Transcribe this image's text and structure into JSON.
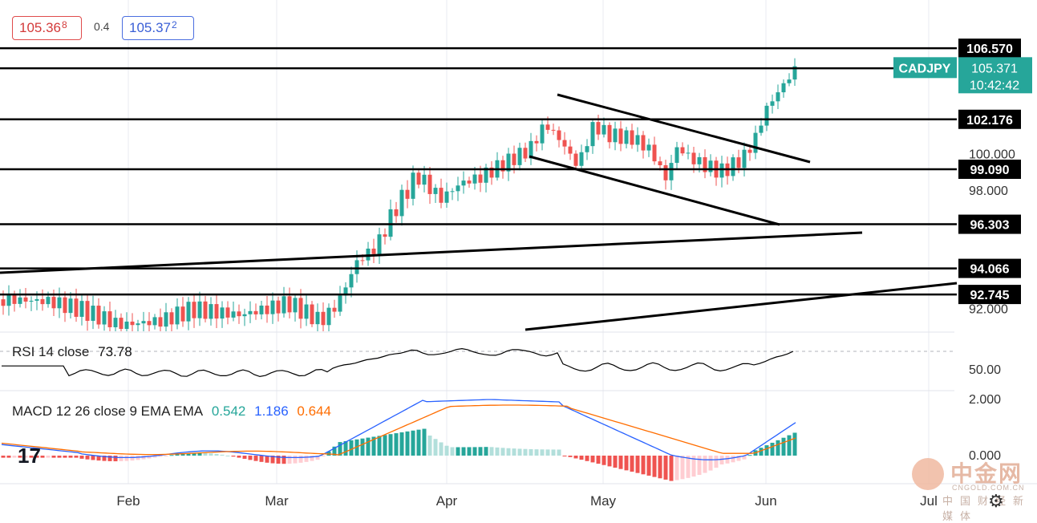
{
  "header": {
    "sell_price": "105.36",
    "sell_price_sup": "8",
    "spread": "0.4",
    "buy_price": "105.37",
    "buy_price_sup": "2"
  },
  "watermark": {
    "brand": "中金网",
    "site": "CNGOLD.COM.CN",
    "slogan": "中国财经新媒体"
  },
  "tv_logo": "17",
  "chart_data": [
    {
      "type": "candlestick",
      "symbol_label": "CADJPY",
      "last_price": "105.371",
      "countdown": "10:42:42",
      "price_axis_labels": [
        "100.000",
        "98.000",
        "92.000"
      ],
      "x_tick_labels": [
        "Feb",
        "Mar",
        "Apr",
        "May",
        "Jun",
        "Jul"
      ],
      "horizontal_levels": [
        {
          "label": "106.570",
          "value": 106.57
        },
        {
          "label": "105.331",
          "value": 105.331
        },
        {
          "label": "102.176",
          "value": 102.176
        },
        {
          "label": "99.090",
          "value": 99.09
        },
        {
          "label": "96.303",
          "value": 96.303
        },
        {
          "label": "94.066",
          "value": 94.066
        },
        {
          "label": "92.745",
          "value": 92.745
        }
      ],
      "colors": {
        "up": "#26a69a",
        "down": "#ef5350",
        "last_price_bg": "#26a69a",
        "level_line": "#000000"
      }
    },
    {
      "type": "line",
      "indicator": "RSI",
      "label_name": "RSI 14 close",
      "label_value": "73.78",
      "axis_labels": [
        "50.00"
      ],
      "colors": {
        "line": "#000000"
      }
    },
    {
      "type": "bar",
      "indicator": "MACD",
      "label_name": "MACD 12 26 close 9 EMA EMA",
      "histogram_value": "0.542",
      "macd_value": "1.186",
      "signal_value": "0.644",
      "axis_labels": [
        "2.000",
        "0.000"
      ],
      "colors": {
        "histogram_up": "#26a69a",
        "histogram_up_light": "#b2dfdb",
        "histogram_down": "#ef5350",
        "histogram_down_light": "#ffcdd2",
        "macd": "#2962ff",
        "signal": "#ff6d00"
      }
    }
  ]
}
